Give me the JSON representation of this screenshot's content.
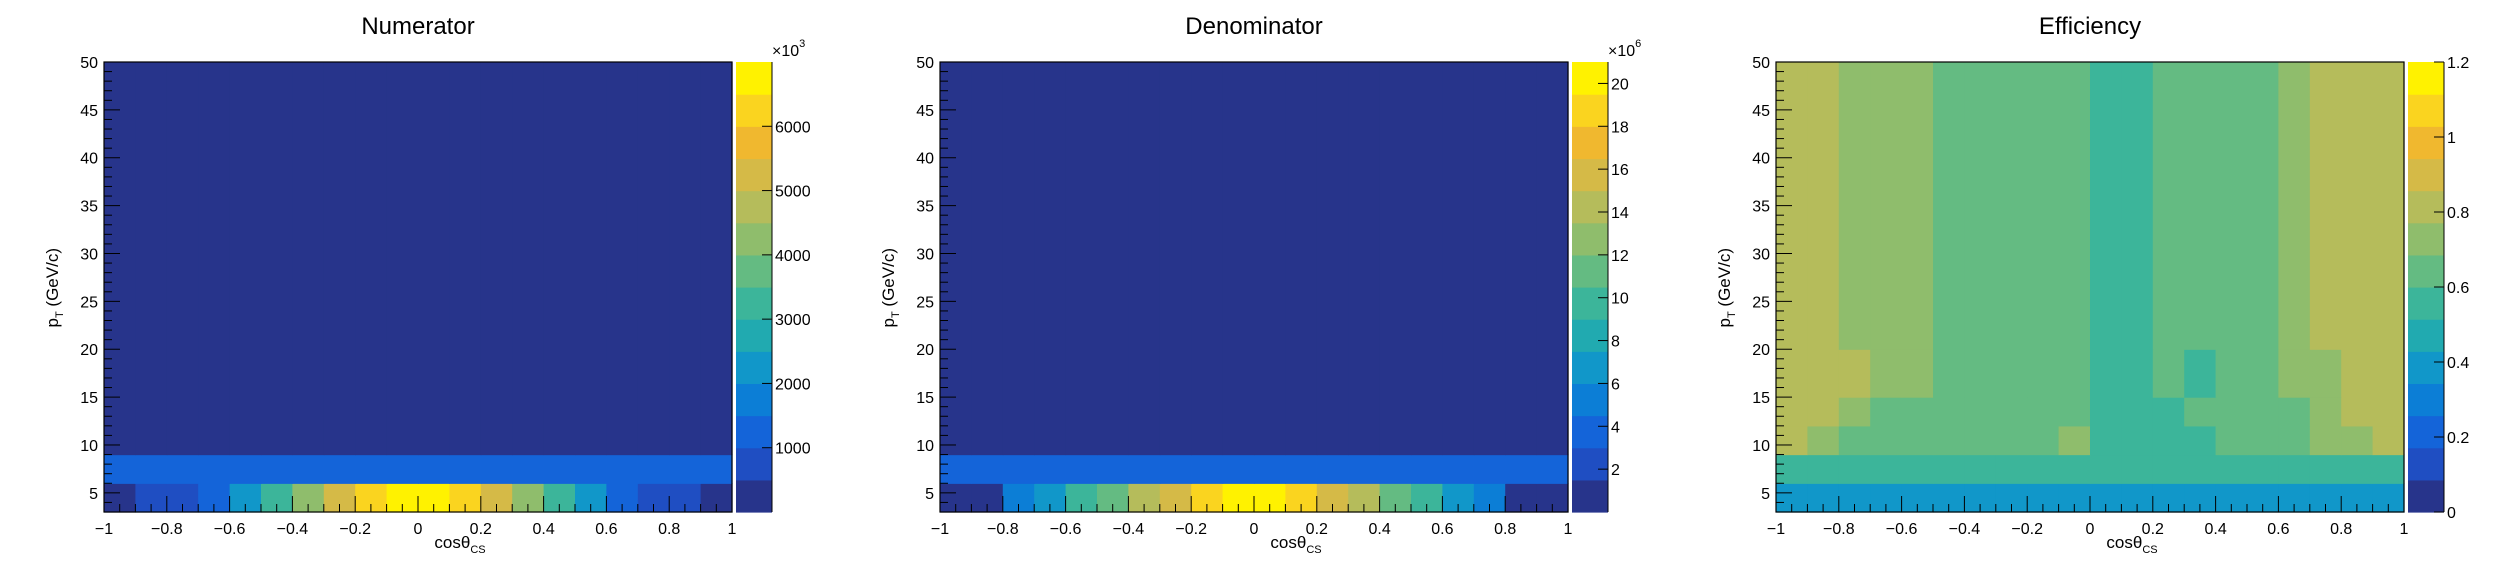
{
  "chart_data": [
    {
      "type": "heatmap",
      "title": "Numerator",
      "xlabel": "cosθ",
      "xlabel_sub": "CS",
      "ylabel": "p",
      "ylabel_sub": "T",
      "ylabel_unit": " (GeV/c)",
      "xlim": [
        -1,
        1
      ],
      "ylim": [
        3,
        50
      ],
      "x_ticks": [
        -1,
        -0.8,
        -0.6,
        -0.4,
        -0.2,
        0,
        0.2,
        0.4,
        0.6,
        0.8,
        1
      ],
      "x_tick_labels": [
        "−1",
        "−0.8",
        "−0.6",
        "−0.4",
        "−0.2",
        "0",
        "0.2",
        "0.4",
        "0.6",
        "0.8",
        "1"
      ],
      "y_ticks": [
        5,
        10,
        15,
        20,
        25,
        30,
        35,
        40,
        45,
        50
      ],
      "y_tick_labels": [
        "5",
        "10",
        "15",
        "20",
        "25",
        "30",
        "35",
        "40",
        "45",
        "50"
      ],
      "x_edges": [
        -1,
        -0.9,
        -0.8,
        -0.7,
        -0.6,
        -0.5,
        -0.4,
        -0.3,
        -0.2,
        -0.1,
        0,
        0.1,
        0.2,
        0.3,
        0.4,
        0.5,
        0.6,
        0.7,
        0.8,
        0.9,
        1
      ],
      "y_edges": [
        3,
        6,
        9,
        50
      ],
      "z": [
        [
          200,
          700,
          900,
          1400,
          2300,
          3100,
          4200,
          5000,
          6200,
          6700,
          6700,
          6200,
          5000,
          4200,
          3100,
          2300,
          1400,
          900,
          700,
          200
        ],
        [
          1100,
          1100,
          1100,
          1100,
          1200,
          1200,
          1200,
          1200,
          1200,
          1200,
          1200,
          1200,
          1200,
          1200,
          1200,
          1200,
          1100,
          1100,
          1100,
          1100
        ],
        [
          300,
          300,
          300,
          300,
          300,
          300,
          300,
          300,
          300,
          300,
          300,
          300,
          300,
          300,
          300,
          300,
          300,
          300,
          300,
          300
        ]
      ],
      "zlim": [
        0,
        7000
      ],
      "colorbar_ticks": [
        1000,
        2000,
        3000,
        4000,
        5000,
        6000
      ],
      "colorbar_tick_labels": [
        "1000",
        "2000",
        "3000",
        "4000",
        "5000",
        "6000"
      ],
      "colorbar_exponent_base": "×10",
      "colorbar_exponent": "3"
    },
    {
      "type": "heatmap",
      "title": "Denominator",
      "xlabel": "cosθ",
      "xlabel_sub": "CS",
      "ylabel": "p",
      "ylabel_sub": "T",
      "ylabel_unit": " (GeV/c)",
      "xlim": [
        -1,
        1
      ],
      "ylim": [
        3,
        50
      ],
      "x_ticks": [
        -1,
        -0.8,
        -0.6,
        -0.4,
        -0.2,
        0,
        0.2,
        0.4,
        0.6,
        0.8,
        1
      ],
      "x_tick_labels": [
        "−1",
        "−0.8",
        "−0.6",
        "−0.4",
        "−0.2",
        "0",
        "0.2",
        "0.4",
        "0.6",
        "0.8",
        "1"
      ],
      "y_ticks": [
        5,
        10,
        15,
        20,
        25,
        30,
        35,
        40,
        45,
        50
      ],
      "y_tick_labels": [
        "5",
        "10",
        "15",
        "20",
        "25",
        "30",
        "35",
        "40",
        "45",
        "50"
      ],
      "x_edges": [
        -1,
        -0.9,
        -0.8,
        -0.7,
        -0.6,
        -0.5,
        -0.4,
        -0.3,
        -0.2,
        -0.1,
        0,
        0.1,
        0.2,
        0.3,
        0.4,
        0.5,
        0.6,
        0.7,
        0.8,
        0.9,
        1
      ],
      "y_edges": [
        3,
        6,
        9,
        50
      ],
      "z": [
        [
          0.3,
          0.3,
          4.5,
          6.0,
          9.0,
          11.0,
          13.5,
          16.0,
          19.0,
          21.0,
          21.0,
          19.0,
          16.0,
          13.5,
          11.0,
          9.0,
          6.0,
          4.5,
          0.3,
          0.3
        ],
        [
          3.6,
          3.6,
          3.6,
          3.6,
          3.6,
          3.8,
          3.8,
          3.8,
          3.8,
          3.8,
          3.8,
          3.8,
          3.8,
          3.8,
          3.8,
          3.6,
          3.6,
          3.6,
          3.6,
          3.6
        ],
        [
          0.6,
          0.6,
          0.6,
          0.6,
          0.6,
          0.6,
          0.6,
          0.6,
          0.6,
          0.6,
          0.6,
          0.6,
          0.6,
          0.6,
          0.6,
          0.6,
          0.6,
          0.6,
          0.6,
          0.6
        ]
      ],
      "zlim": [
        0,
        21
      ],
      "colorbar_ticks": [
        2,
        4,
        6,
        8,
        10,
        12,
        14,
        16,
        18,
        20
      ],
      "colorbar_tick_labels": [
        "2",
        "4",
        "6",
        "8",
        "10",
        "12",
        "14",
        "16",
        "18",
        "20"
      ],
      "colorbar_exponent_base": "×10",
      "colorbar_exponent": "6"
    },
    {
      "type": "heatmap",
      "title": "Efficiency",
      "xlabel": "cosθ",
      "xlabel_sub": "CS",
      "ylabel": "p",
      "ylabel_sub": "T",
      "ylabel_unit": " (GeV/c)",
      "xlim": [
        -1,
        1
      ],
      "ylim": [
        3,
        50
      ],
      "x_ticks": [
        -1,
        -0.8,
        -0.6,
        -0.4,
        -0.2,
        0,
        0.2,
        0.4,
        0.6,
        0.8,
        1
      ],
      "x_tick_labels": [
        "−1",
        "−0.8",
        "−0.6",
        "−0.4",
        "−0.2",
        "0",
        "0.2",
        "0.4",
        "0.6",
        "0.8",
        "1"
      ],
      "y_ticks": [
        5,
        10,
        15,
        20,
        25,
        30,
        35,
        40,
        45,
        50
      ],
      "y_tick_labels": [
        "5",
        "10",
        "15",
        "20",
        "25",
        "30",
        "35",
        "40",
        "45",
        "50"
      ],
      "x_edges": [
        -1,
        -0.9,
        -0.8,
        -0.7,
        -0.6,
        -0.5,
        -0.4,
        -0.3,
        -0.2,
        -0.1,
        0,
        0.1,
        0.2,
        0.3,
        0.4,
        0.5,
        0.6,
        0.7,
        0.8,
        0.9,
        1
      ],
      "y_edges": [
        3,
        6,
        9,
        12,
        15,
        20,
        50
      ],
      "z": [
        [
          0.42,
          0.42,
          0.42,
          0.42,
          0.42,
          0.42,
          0.42,
          0.42,
          0.42,
          0.42,
          0.42,
          0.42,
          0.42,
          0.42,
          0.42,
          0.42,
          0.42,
          0.42,
          0.42,
          0.42
        ],
        [
          0.52,
          0.52,
          0.52,
          0.52,
          0.52,
          0.52,
          0.52,
          0.52,
          0.52,
          0.52,
          0.52,
          0.52,
          0.52,
          0.52,
          0.52,
          0.52,
          0.52,
          0.52,
          0.52,
          0.52
        ],
        [
          0.78,
          0.72,
          0.64,
          0.64,
          0.64,
          0.64,
          0.64,
          0.64,
          0.64,
          0.72,
          0.56,
          0.56,
          0.56,
          0.56,
          0.64,
          0.64,
          0.64,
          0.72,
          0.72,
          0.78
        ],
        [
          0.78,
          0.78,
          0.72,
          0.64,
          0.64,
          0.64,
          0.64,
          0.64,
          0.64,
          0.64,
          0.56,
          0.56,
          0.56,
          0.64,
          0.64,
          0.64,
          0.64,
          0.72,
          0.78,
          0.78
        ],
        [
          0.78,
          0.78,
          0.78,
          0.72,
          0.72,
          0.64,
          0.64,
          0.64,
          0.64,
          0.64,
          0.56,
          0.56,
          0.64,
          0.56,
          0.64,
          0.64,
          0.72,
          0.72,
          0.78,
          0.78
        ],
        [
          0.78,
          0.78,
          0.72,
          0.72,
          0.72,
          0.64,
          0.64,
          0.64,
          0.64,
          0.64,
          0.56,
          0.56,
          0.64,
          0.64,
          0.64,
          0.64,
          0.72,
          0.78,
          0.78,
          0.78
        ]
      ],
      "zlim": [
        0,
        1.2
      ],
      "colorbar_ticks": [
        0,
        0.2,
        0.4,
        0.6,
        0.8,
        1,
        1.2
      ],
      "colorbar_tick_labels": [
        "0",
        "0.2",
        "0.4",
        "0.6",
        "0.8",
        "1",
        "1.2"
      ],
      "colorbar_exponent_base": "",
      "colorbar_exponent": ""
    }
  ],
  "palette": [
    "#27348b",
    "#1f4ec2",
    "#1464d9",
    "#0c7ed6",
    "#1197c9",
    "#21aab0",
    "#3cb59a",
    "#64bb82",
    "#8fbd6c",
    "#b5bc5b",
    "#d5ba47",
    "#f0b82f",
    "#fad41f",
    "#fff200"
  ]
}
